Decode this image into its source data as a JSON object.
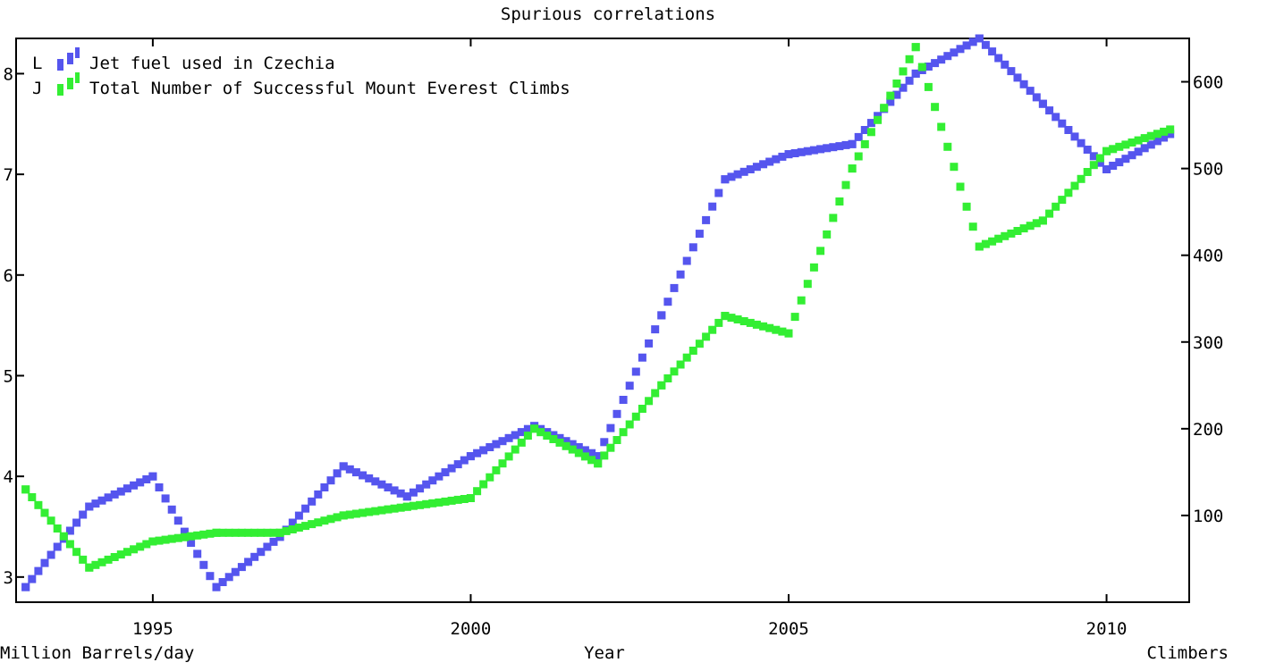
{
  "chart_data": {
    "type": "line",
    "title": "Spurious correlations",
    "xlabel": "Year",
    "ylabel_left": "Million Barrels/day",
    "ylabel_right": "Climbers",
    "x": [
      1993,
      1994,
      1995,
      1996,
      1997,
      1998,
      1999,
      2000,
      2001,
      2002,
      2003,
      2004,
      2005,
      2006,
      2007,
      2008,
      2009,
      2010,
      2011
    ],
    "xlim": [
      1992.85,
      2011.3
    ],
    "x_ticks": [
      1995,
      2000,
      2005,
      2010
    ],
    "y_left_lim": [
      2.75,
      8.35
    ],
    "y_left_ticks": [
      3,
      4,
      5,
      6,
      7,
      8
    ],
    "y_right_lim": [
      0,
      650
    ],
    "y_right_ticks": [
      100,
      200,
      300,
      400,
      500,
      600
    ],
    "grid": false,
    "legend_position": "top-left",
    "series": [
      {
        "name": "Jet fuel used in Czechia",
        "axis": "left",
        "color": "#5555ee",
        "legend_marker": "L",
        "values": [
          2.9,
          3.7,
          4.0,
          2.9,
          3.4,
          4.1,
          3.8,
          4.2,
          4.5,
          4.2,
          5.6,
          6.95,
          7.2,
          7.3,
          8.0,
          8.35,
          7.7,
          7.05,
          7.4
        ]
      },
      {
        "name": "Total Number of Successful Mount Everest Climbs",
        "axis": "right",
        "color": "#33ee33",
        "legend_marker": "J",
        "values": [
          130,
          40,
          70,
          80,
          80,
          100,
          110,
          120,
          200,
          160,
          250,
          330,
          310,
          500,
          640,
          410,
          440,
          520,
          545
        ]
      }
    ]
  }
}
